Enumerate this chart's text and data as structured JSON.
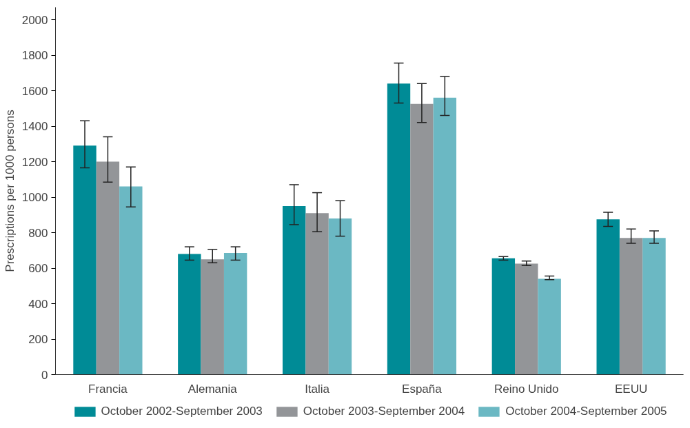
{
  "chart_data": {
    "type": "bar",
    "ylabel": "Prescriptions per 1000 persons",
    "categories": [
      "Francia",
      "Alemania",
      "Italia",
      "España",
      "Reino Unido",
      "EEUU"
    ],
    "ylim": [
      0,
      2070
    ],
    "yticks": [
      0,
      200,
      400,
      600,
      800,
      1000,
      1200,
      1400,
      1600,
      1800,
      2000
    ],
    "grid": false,
    "legend": "bottom",
    "series": [
      {
        "name": "October 2002-September 2003",
        "color": "#008b96",
        "values": [
          1290,
          680,
          950,
          1640,
          655,
          875
        ],
        "errors": [
          [
            1165,
            1430
          ],
          [
            645,
            720
          ],
          [
            845,
            1070
          ],
          [
            1530,
            1755
          ],
          [
            645,
            665
          ],
          [
            835,
            915
          ]
        ]
      },
      {
        "name": "October 2003-September 2004",
        "color": "#939598",
        "values": [
          1200,
          650,
          910,
          1525,
          625,
          770
        ],
        "errors": [
          [
            1085,
            1340
          ],
          [
            630,
            705
          ],
          [
            805,
            1025
          ],
          [
            1420,
            1640
          ],
          [
            615,
            640
          ],
          [
            740,
            820
          ]
        ]
      },
      {
        "name": "October 2004-September 2005",
        "color": "#6bb8c3",
        "values": [
          1060,
          685,
          880,
          1560,
          540,
          770
        ],
        "errors": [
          [
            945,
            1170
          ],
          [
            645,
            720
          ],
          [
            780,
            980
          ],
          [
            1460,
            1680
          ],
          [
            535,
            555
          ],
          [
            740,
            810
          ]
        ]
      }
    ]
  }
}
